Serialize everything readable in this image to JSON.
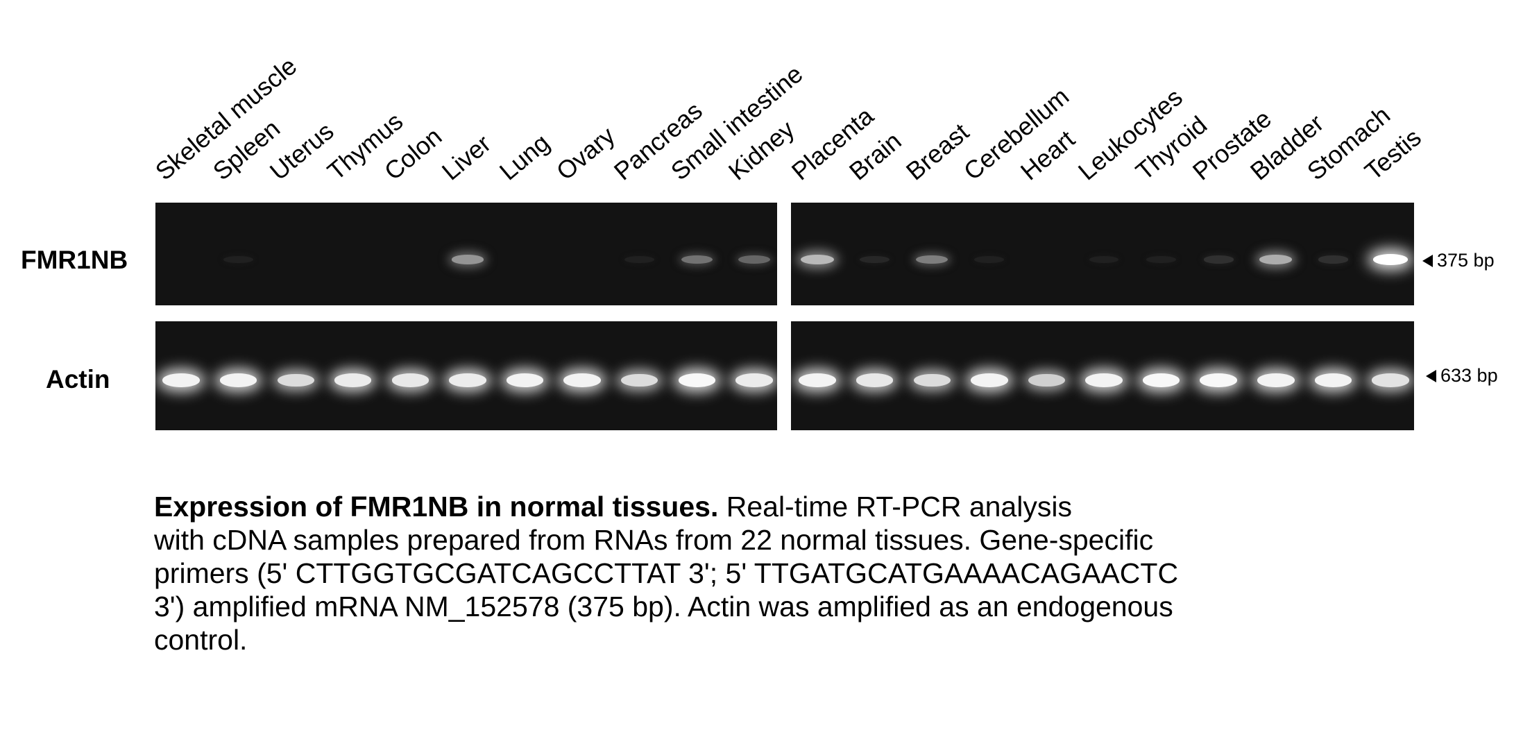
{
  "lanes_left": [
    "Skeletal muscle",
    "Spleen",
    "Uterus",
    "Thymus",
    "Colon",
    "Liver",
    "Lung",
    "Ovary",
    "Pancreas",
    "Small intestine",
    "Kidney"
  ],
  "lanes_right": [
    "Placenta",
    "Brain",
    "Breast",
    "Cerebellum",
    "Heart",
    "Leukocytes",
    "Thyroid",
    "Prostate",
    "Bladder",
    "Stomach",
    "Testis"
  ],
  "rows": {
    "top": "FMR1NB",
    "bottom": "Actin"
  },
  "markers": {
    "top": "375 bp",
    "bottom": "633 bp"
  },
  "fmr1nb_intensity_left": [
    0,
    0.05,
    0,
    0,
    0,
    0.55,
    0,
    0,
    0.05,
    0.4,
    0.35
  ],
  "fmr1nb_intensity_right": [
    0.7,
    0.08,
    0.45,
    0.05,
    0,
    0.05,
    0.05,
    0.12,
    0.65,
    0.12,
    1.0
  ],
  "actin_intensity_left": [
    0.95,
    0.95,
    0.85,
    0.92,
    0.9,
    0.92,
    0.95,
    0.95,
    0.85,
    0.97,
    0.92
  ],
  "actin_intensity_right": [
    0.95,
    0.9,
    0.85,
    0.95,
    0.8,
    0.95,
    0.97,
    0.97,
    0.95,
    0.95,
    0.88
  ],
  "caption": {
    "bold": "Expression of FMR1NB in normal tissues.",
    "l1": " Real-time RT-PCR analysis",
    "l2": "with cDNA samples prepared from RNAs from 22 normal tissues. Gene-specific",
    "l3": "primers (5' CTTGGTGCGATCAGCCTTAT 3'; 5' TTGATGCATGAAAACAGAACTC",
    "l4": " 3') amplified mRNA NM_152578 (375 bp). Actin was amplified as an endogenous",
    "l5": "control."
  }
}
